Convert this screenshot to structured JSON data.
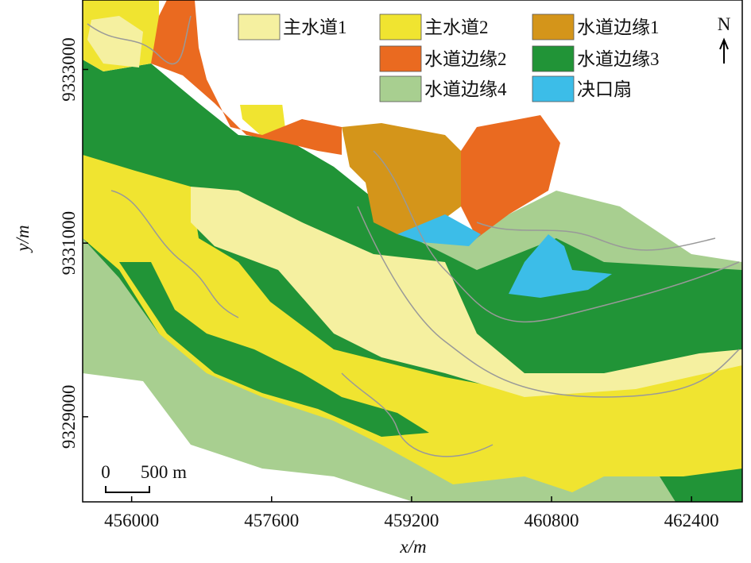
{
  "map": {
    "xlim": [
      455440,
      462980
    ],
    "ylim": [
      9328020,
      9333800
    ],
    "xticks": [
      456000,
      457600,
      459200,
      460800,
      462400
    ],
    "yticks": [
      9329000,
      9331000,
      9333000
    ],
    "x_label": "x/m",
    "y_label": "y/m",
    "legend": [
      {
        "label": "主水道1",
        "color": "#f5f0a0"
      },
      {
        "label": "主水道2",
        "color": "#f0e430"
      },
      {
        "label": "水道边缘1",
        "color": "#d4951a"
      },
      {
        "label": "水道边缘2",
        "color": "#ea6a20"
      },
      {
        "label": "水道边缘3",
        "color": "#219437"
      },
      {
        "label": "水道边缘4",
        "color": "#a8cf90"
      },
      {
        "label": "决口扇",
        "color": "#3cbde8"
      }
    ],
    "north": "N",
    "scale_bar": {
      "start": "0",
      "label": "500 m"
    }
  }
}
